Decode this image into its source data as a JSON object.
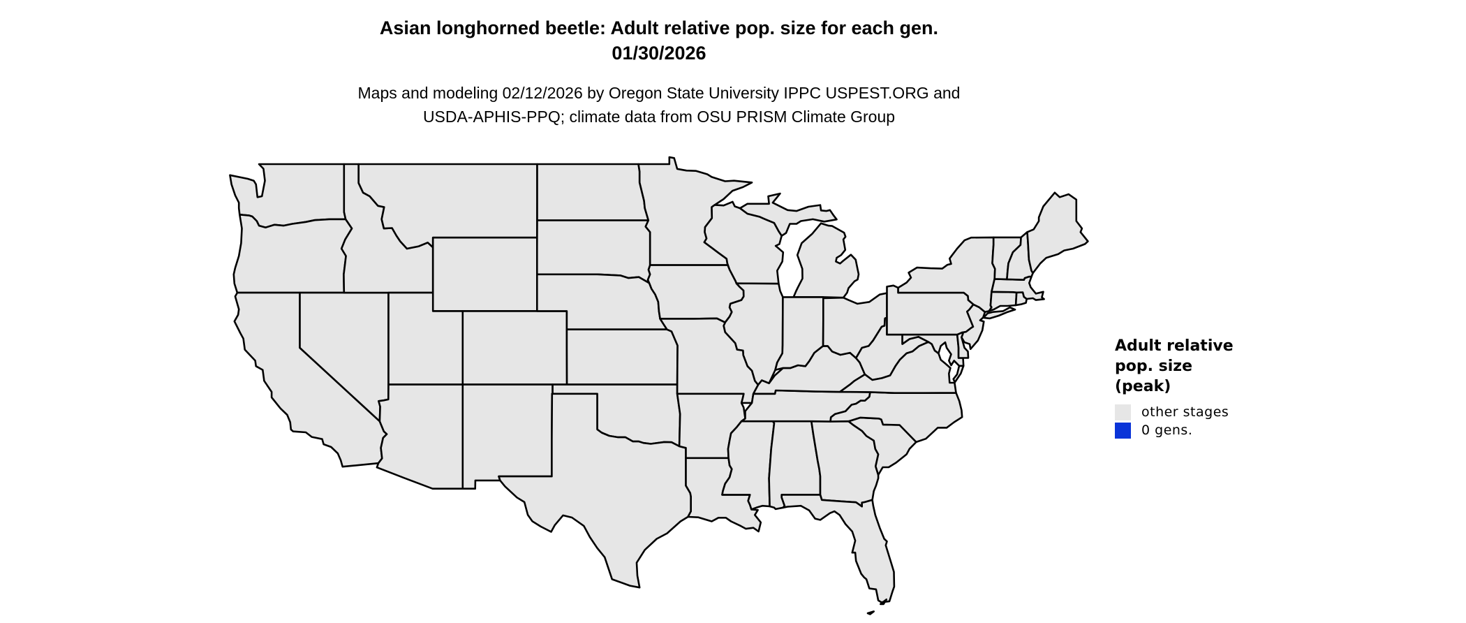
{
  "title": {
    "line1": "Asian longhorned beetle: Adult relative pop. size for each gen.",
    "line2": "01/30/2026"
  },
  "subtitle": {
    "line1": "Maps and modeling 02/12/2026 by Oregon State University IPPC USPEST.ORG and",
    "line2": "USDA-APHIS-PPQ; climate data from OSU PRISM Climate Group"
  },
  "legend": {
    "title_lines": [
      "Adult relative",
      "pop. size",
      "(peak)"
    ],
    "items": [
      {
        "label": "other stages",
        "color": "#E6E6E6"
      },
      {
        "label": "0 gens.",
        "color": "#0A34D8"
      }
    ]
  },
  "map": {
    "region": "Contiguous United States",
    "fill_color": "#E6E6E6",
    "border_color": "#000000"
  }
}
